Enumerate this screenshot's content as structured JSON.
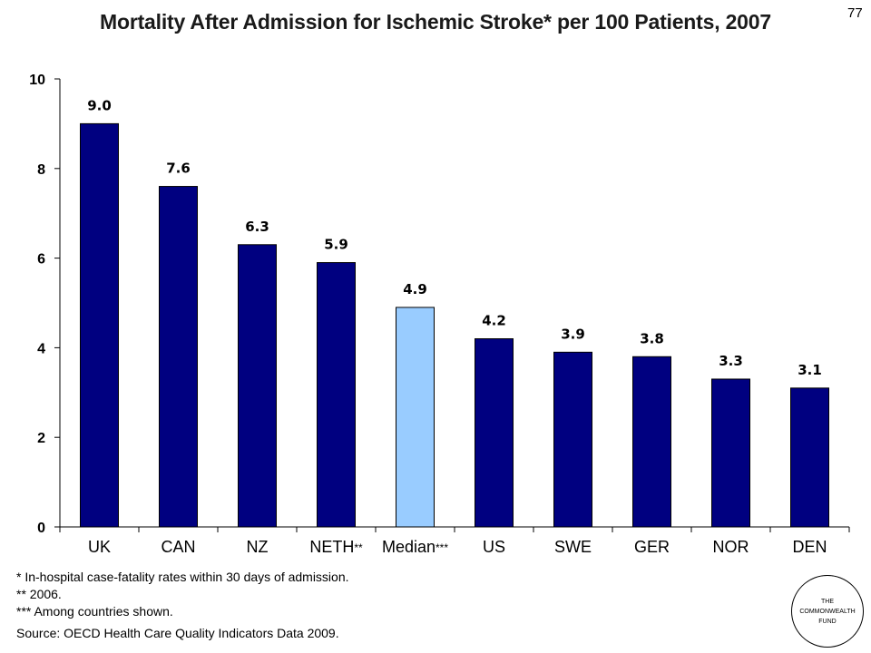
{
  "page_number": "77",
  "notes": [
    "* In-hospital case-fatality rates within 30 days of admission.",
    "** 2006.",
    "*** Among countries shown."
  ],
  "source": "Source: OECD Health Care Quality Indicators Data 2009.",
  "logo": {
    "line1": "THE",
    "line2": "COMMONWEALTH",
    "line3": "FUND"
  },
  "colors": {
    "bar": "#000080",
    "median_bar": "#99ccff"
  },
  "chart_data": {
    "type": "bar",
    "title": "Mortality After Admission for Ischemic Stroke* per 100 Patients, 2007",
    "categories": [
      "UK",
      "CAN",
      "NZ",
      "NETH",
      "Median",
      "US",
      "SWE",
      "GER",
      "NOR",
      "DEN"
    ],
    "category_suffixes": [
      "",
      "",
      "",
      "**",
      "***",
      "",
      "",
      "",
      "",
      ""
    ],
    "values": [
      9.0,
      7.6,
      6.3,
      5.9,
      4.9,
      4.2,
      3.9,
      3.8,
      3.3,
      3.1
    ],
    "data_labels": [
      "9.0",
      "7.6",
      "6.3",
      "5.9",
      "4.9",
      "4.2",
      "3.9",
      "3.8",
      "3.3",
      "3.1"
    ],
    "highlight_index": 4,
    "ylim": [
      0,
      10
    ],
    "yticks": [
      0,
      2,
      4,
      6,
      8,
      10
    ],
    "grid": false,
    "legend": "none"
  }
}
